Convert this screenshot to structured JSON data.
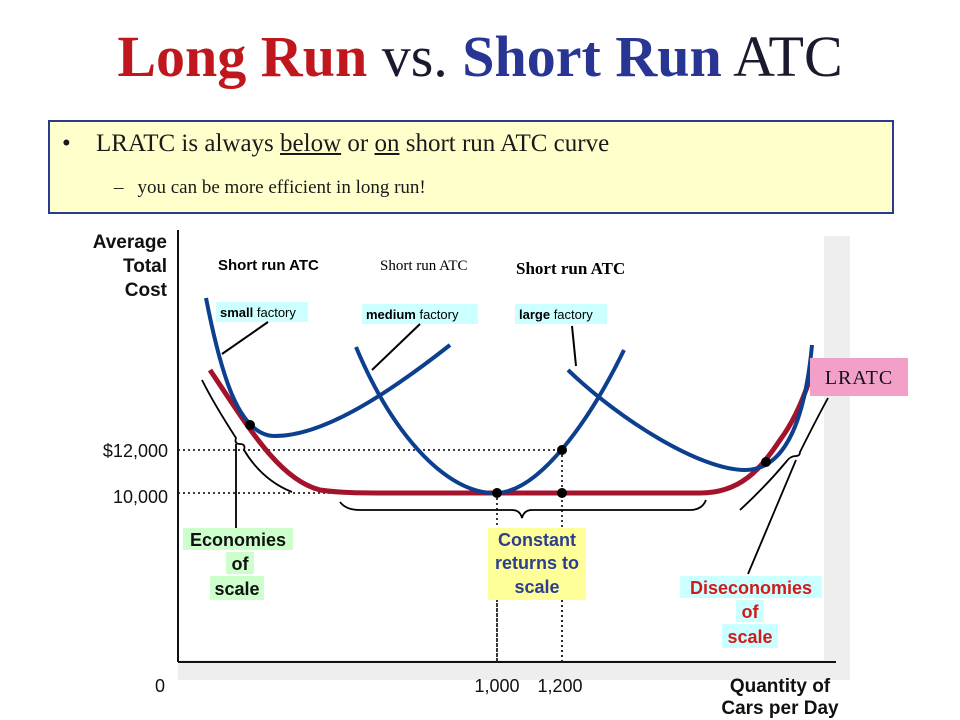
{
  "slide": {
    "title_part1": "Long Run",
    "title_part2": " vs. ",
    "title_part3": "Short Run",
    "title_part4": " ATC",
    "bullet_prefix": "LRATC is always ",
    "bullet_below": "below",
    "bullet_or": " or ",
    "bullet_on": "on",
    "bullet_suffix": " short run ATC curve",
    "sub_dash": "–",
    "sub_text": "you can be more efficient in long run!"
  },
  "colors": {
    "title_red": "#c0161d",
    "title_blue": "#283593",
    "short_run_curve": "#0d3f8f",
    "lratc_curve": "#a3142c",
    "box_fill": "#ffffcc",
    "label_green": "#ccffcc",
    "label_yellow": "#ffff99",
    "label_cyan": "#ccffff",
    "lratc_tag": "#f2a0c8"
  },
  "chart_data": {
    "type": "line",
    "ylabel": "Average Total Cost",
    "xlabel": "Quantity of Cars per Day",
    "y_ticks": [
      "$12,000",
      "10,000"
    ],
    "x_ticks": [
      "0",
      "1,000",
      "1,200"
    ],
    "y_tick_values": [
      12000,
      10000
    ],
    "x_tick_values": [
      0,
      1000,
      1200
    ],
    "lratc_label": "LRATC",
    "short_run": [
      {
        "title": "Short run ATC",
        "sublabel_bold": "small",
        "sublabel_rest": " factory"
      },
      {
        "title": "Short run ATC",
        "sublabel_bold": "medium",
        "sublabel_rest": " factory"
      },
      {
        "title": "Short run ATC",
        "sublabel_bold": "large",
        "sublabel_rest": " factory"
      }
    ],
    "regions": [
      {
        "lines": [
          "Economies",
          "of",
          "scale"
        ]
      },
      {
        "lines": [
          "Constant",
          "returns to",
          "scale"
        ]
      },
      {
        "lines": [
          "Diseconomies",
          "of",
          "scale"
        ]
      }
    ],
    "points": [
      {
        "x": 1000,
        "y": 10000
      },
      {
        "x": 1200,
        "y": 10000
      },
      {
        "x": 1200,
        "y": 12000
      }
    ],
    "grid": false
  }
}
